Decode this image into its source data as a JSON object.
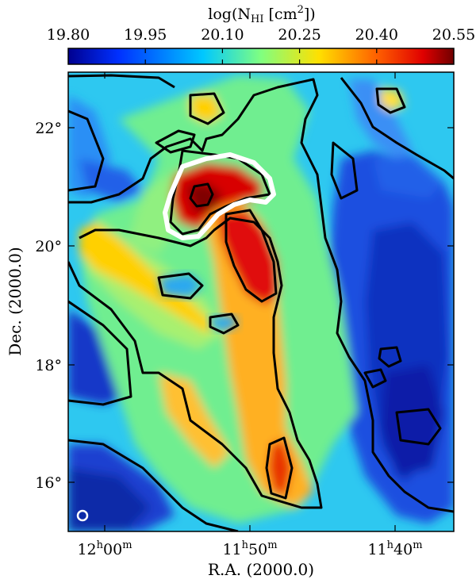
{
  "colorbar": {
    "title_main": "log(N",
    "title_sub": "HI",
    "title_unit": " [cm",
    "title_exp": "2",
    "title_close": "])",
    "ticks": [
      "19.80",
      "19.95",
      "20.10",
      "20.25",
      "20.40",
      "20.55"
    ],
    "range": [
      19.8,
      20.55
    ],
    "colormap": [
      "#00008f",
      "#0040ff",
      "#00c0ff",
      "#7fff7f",
      "#ffc000",
      "#ff4000",
      "#800000"
    ]
  },
  "map": {
    "x_label": "R.A. (2000.0)",
    "y_label": "Dec. (2000.0)",
    "x_ticks": [
      {
        "h": "12",
        "hu": "h",
        "m": "00",
        "mu": "m"
      },
      {
        "h": "11",
        "hu": "h",
        "m": "50",
        "mu": "m"
      },
      {
        "h": "11",
        "hu": "h",
        "m": "40",
        "mu": "m"
      }
    ],
    "y_ticks": [
      "22°",
      "20°",
      "18°",
      "16°"
    ],
    "contour_colors": {
      "line": "#000000",
      "highlight": "#ffffff"
    },
    "beam_marker": "beam-circle"
  }
}
